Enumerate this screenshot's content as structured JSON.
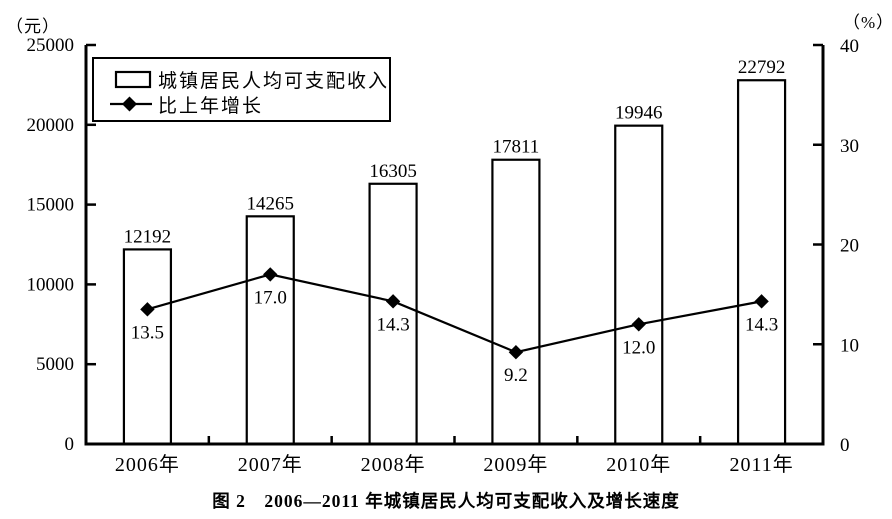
{
  "page": {
    "caption": "图 2　2006—2011 年城镇居民人均可支配收入及增长速度"
  },
  "chart_data": {
    "type": "bar",
    "subtype": "bar+line combo",
    "categories": [
      "2006年",
      "2007年",
      "2008年",
      "2009年",
      "2010年",
      "2011年"
    ],
    "series": [
      {
        "name": "城镇居民人均可支配收入",
        "type": "bar",
        "axis": "left",
        "values": [
          12192,
          14265,
          16305,
          17811,
          19946,
          22792
        ],
        "labels": [
          "12192",
          "14265",
          "16305",
          "17811",
          "19946",
          "22792"
        ]
      },
      {
        "name": "比上年增长",
        "type": "line",
        "axis": "right",
        "marker": "diamond",
        "values": [
          13.5,
          17.0,
          14.3,
          9.2,
          12.0,
          14.3
        ],
        "labels": [
          "13.5",
          "17.0",
          "14.3",
          "9.2",
          "12.0",
          "14.3"
        ]
      }
    ],
    "left_axis": {
      "unit": "（元）",
      "min": 0,
      "max": 25000,
      "ticks": [
        0,
        5000,
        10000,
        15000,
        20000,
        25000
      ]
    },
    "right_axis": {
      "unit": "（%）",
      "min": 0,
      "max": 40,
      "ticks": [
        0,
        10,
        20,
        30,
        40
      ]
    },
    "legend_position": "top-left-inside",
    "grid": false,
    "title": "图 2　2006—2011 年城镇居民人均可支配收入及增长速度",
    "colors": {
      "foreground": "#000000",
      "background": "#ffffff"
    }
  }
}
